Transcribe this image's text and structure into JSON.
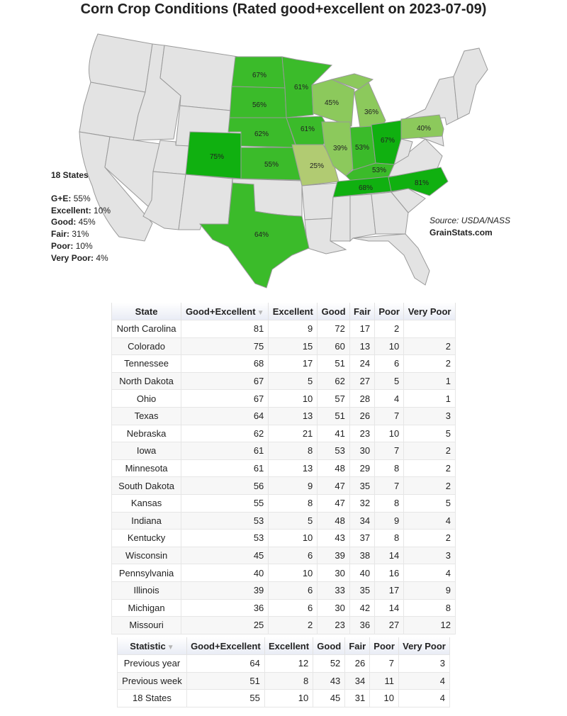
{
  "title": "Corn Crop Conditions (Rated good+excellent on 2023-07-09)",
  "colors": {
    "other_state": "#e3e3e3",
    "state_border": "#9a9a9a",
    "rated_high": "#10b010",
    "rated_mid": "#3bbb2a",
    "rated_low": "#8cc95c",
    "rated_lowest": "#b1cb72"
  },
  "map_labels": {
    "ND": "67%",
    "MN": "61%",
    "WI": "45%",
    "MI": "36%",
    "SD": "56%",
    "NE": "62%",
    "IA": "61%",
    "IL": "39%",
    "IN": "53%",
    "OH": "67%",
    "PA": "40%",
    "CO": "75%",
    "KS": "55%",
    "MO": "25%",
    "KY": "53%",
    "TN": "68%",
    "NC": "81%",
    "TX": "64%"
  },
  "summary": {
    "heading": "18 States",
    "rows": [
      {
        "label": "G+E:",
        "value": "55%"
      },
      {
        "label": "Excellent:",
        "value": "10%"
      },
      {
        "label": "Good:",
        "value": "45%"
      },
      {
        "label": "Fair:",
        "value": "31%"
      },
      {
        "label": "Poor:",
        "value": "10%"
      },
      {
        "label": "Very Poor:",
        "value": "4%"
      }
    ]
  },
  "source": {
    "text": "Source: USDA/NASS",
    "site": "GrainStats.com"
  },
  "states_table": {
    "columns": [
      "State",
      "Good+Excellent",
      "Excellent",
      "Good",
      "Fair",
      "Poor",
      "Very Poor"
    ],
    "sort_icon": "sort-desc-icon",
    "rows": [
      [
        "North Carolina",
        "81",
        "9",
        "72",
        "17",
        "2",
        ""
      ],
      [
        "Colorado",
        "75",
        "15",
        "60",
        "13",
        "10",
        "2"
      ],
      [
        "Tennessee",
        "68",
        "17",
        "51",
        "24",
        "6",
        "2"
      ],
      [
        "North Dakota",
        "67",
        "5",
        "62",
        "27",
        "5",
        "1"
      ],
      [
        "Ohio",
        "67",
        "10",
        "57",
        "28",
        "4",
        "1"
      ],
      [
        "Texas",
        "64",
        "13",
        "51",
        "26",
        "7",
        "3"
      ],
      [
        "Nebraska",
        "62",
        "21",
        "41",
        "23",
        "10",
        "5"
      ],
      [
        "Iowa",
        "61",
        "8",
        "53",
        "30",
        "7",
        "2"
      ],
      [
        "Minnesota",
        "61",
        "13",
        "48",
        "29",
        "8",
        "2"
      ],
      [
        "South Dakota",
        "56",
        "9",
        "47",
        "35",
        "7",
        "2"
      ],
      [
        "Kansas",
        "55",
        "8",
        "47",
        "32",
        "8",
        "5"
      ],
      [
        "Indiana",
        "53",
        "5",
        "48",
        "34",
        "9",
        "4"
      ],
      [
        "Kentucky",
        "53",
        "10",
        "43",
        "37",
        "8",
        "2"
      ],
      [
        "Wisconsin",
        "45",
        "6",
        "39",
        "38",
        "14",
        "3"
      ],
      [
        "Pennsylvania",
        "40",
        "10",
        "30",
        "40",
        "16",
        "4"
      ],
      [
        "Illinois",
        "39",
        "6",
        "33",
        "35",
        "17",
        "9"
      ],
      [
        "Michigan",
        "36",
        "6",
        "30",
        "42",
        "14",
        "8"
      ],
      [
        "Missouri",
        "25",
        "2",
        "23",
        "36",
        "27",
        "12"
      ]
    ]
  },
  "stats_table": {
    "columns": [
      "Statistic",
      "Good+Excellent",
      "Excellent",
      "Good",
      "Fair",
      "Poor",
      "Very Poor"
    ],
    "sort_icon": "sort-desc-icon",
    "rows": [
      [
        "Previous year",
        "64",
        "12",
        "52",
        "26",
        "7",
        "3"
      ],
      [
        "Previous week",
        "51",
        "8",
        "43",
        "34",
        "11",
        "4"
      ],
      [
        "18 States",
        "55",
        "10",
        "45",
        "31",
        "10",
        "4"
      ]
    ]
  }
}
